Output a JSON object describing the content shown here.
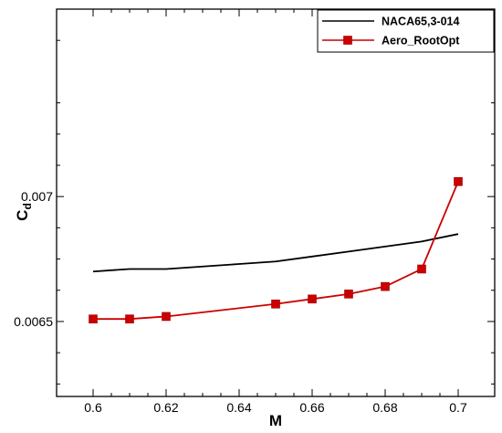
{
  "chart_data": {
    "type": "line",
    "title": "",
    "xlabel": "M",
    "ylabel": {
      "main": "C",
      "sub": "d"
    },
    "xlim": [
      0.59,
      0.71
    ],
    "ylim": [
      0.0062,
      0.00775
    ],
    "xticks": [
      0.6,
      0.62,
      0.64,
      0.66,
      0.68,
      0.7
    ],
    "xtick_labels": [
      "0.6",
      "0.62",
      "0.64",
      "0.66",
      "0.68",
      "0.7"
    ],
    "yticks": [
      0.0065,
      0.007
    ],
    "ytick_labels": [
      "0.0065",
      "0.007"
    ],
    "grid": false,
    "legend_position": "top-right",
    "series": [
      {
        "name": "NACA65,3-014",
        "color": "#000000",
        "marker": "none",
        "x": [
          0.6,
          0.61,
          0.62,
          0.63,
          0.64,
          0.65,
          0.66,
          0.67,
          0.68,
          0.69,
          0.7
        ],
        "y": [
          0.0067,
          0.00671,
          0.00671,
          0.00672,
          0.00673,
          0.00674,
          0.00676,
          0.00678,
          0.0068,
          0.00682,
          0.00685
        ]
      },
      {
        "name": "Aero_RootOpt",
        "color": "#cc0000",
        "marker": "square",
        "x": [
          0.6,
          0.61,
          0.62,
          0.65,
          0.66,
          0.67,
          0.68,
          0.69,
          0.7
        ],
        "y": [
          0.00651,
          0.00651,
          0.00652,
          0.00657,
          0.00659,
          0.00661,
          0.00664,
          0.00671,
          0.00706
        ]
      }
    ]
  }
}
